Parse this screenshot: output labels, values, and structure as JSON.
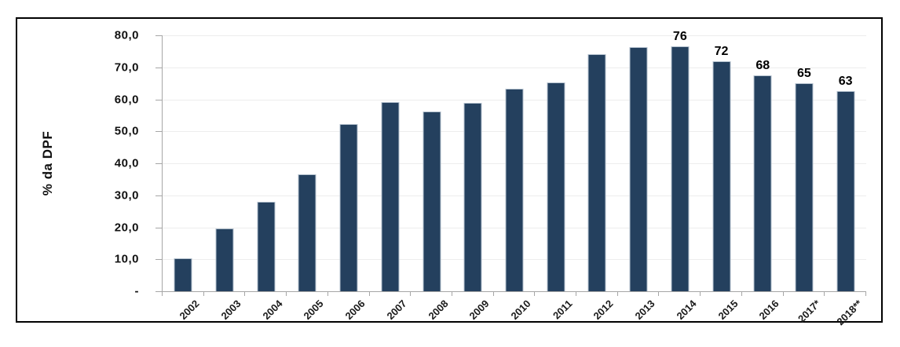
{
  "figure": {
    "background": "#ffffff",
    "border_color": "#000000",
    "y_axis": {
      "ticks": [
        "80,0",
        "70,0",
        "60,0",
        "50,0",
        "40,0",
        "30,0",
        "20,0",
        "10,0",
        "-"
      ],
      "max": 80,
      "step": 10
    }
  },
  "chart_data": {
    "type": "bar",
    "title": "",
    "xlabel": "",
    "ylabel": "% da DPF",
    "ylim": [
      0,
      80
    ],
    "grid": true,
    "legend": "none",
    "bar_color": "#24405e",
    "bar_edge_color": "#b5c2cf",
    "gridline_color": "#ededed",
    "axis_color": "#a6a6a6",
    "categories": [
      "2002",
      "2003",
      "2004",
      "2005",
      "2006",
      "2007",
      "2008",
      "2009",
      "2010",
      "2011",
      "2012",
      "2013",
      "2014",
      "2015",
      "2016",
      "2017*",
      "2018**"
    ],
    "values": [
      10.4,
      19.7,
      27.9,
      36.5,
      52.3,
      59.1,
      56.3,
      58.8,
      63.2,
      65.4,
      74.1,
      76.3,
      76.5,
      72.0,
      67.5,
      65.0,
      62.6
    ],
    "data_labels": [
      "",
      "",
      "",
      "",
      "",
      "",
      "",
      "",
      "",
      "",
      "",
      "",
      "76",
      "72",
      "68",
      "65",
      "63"
    ]
  }
}
